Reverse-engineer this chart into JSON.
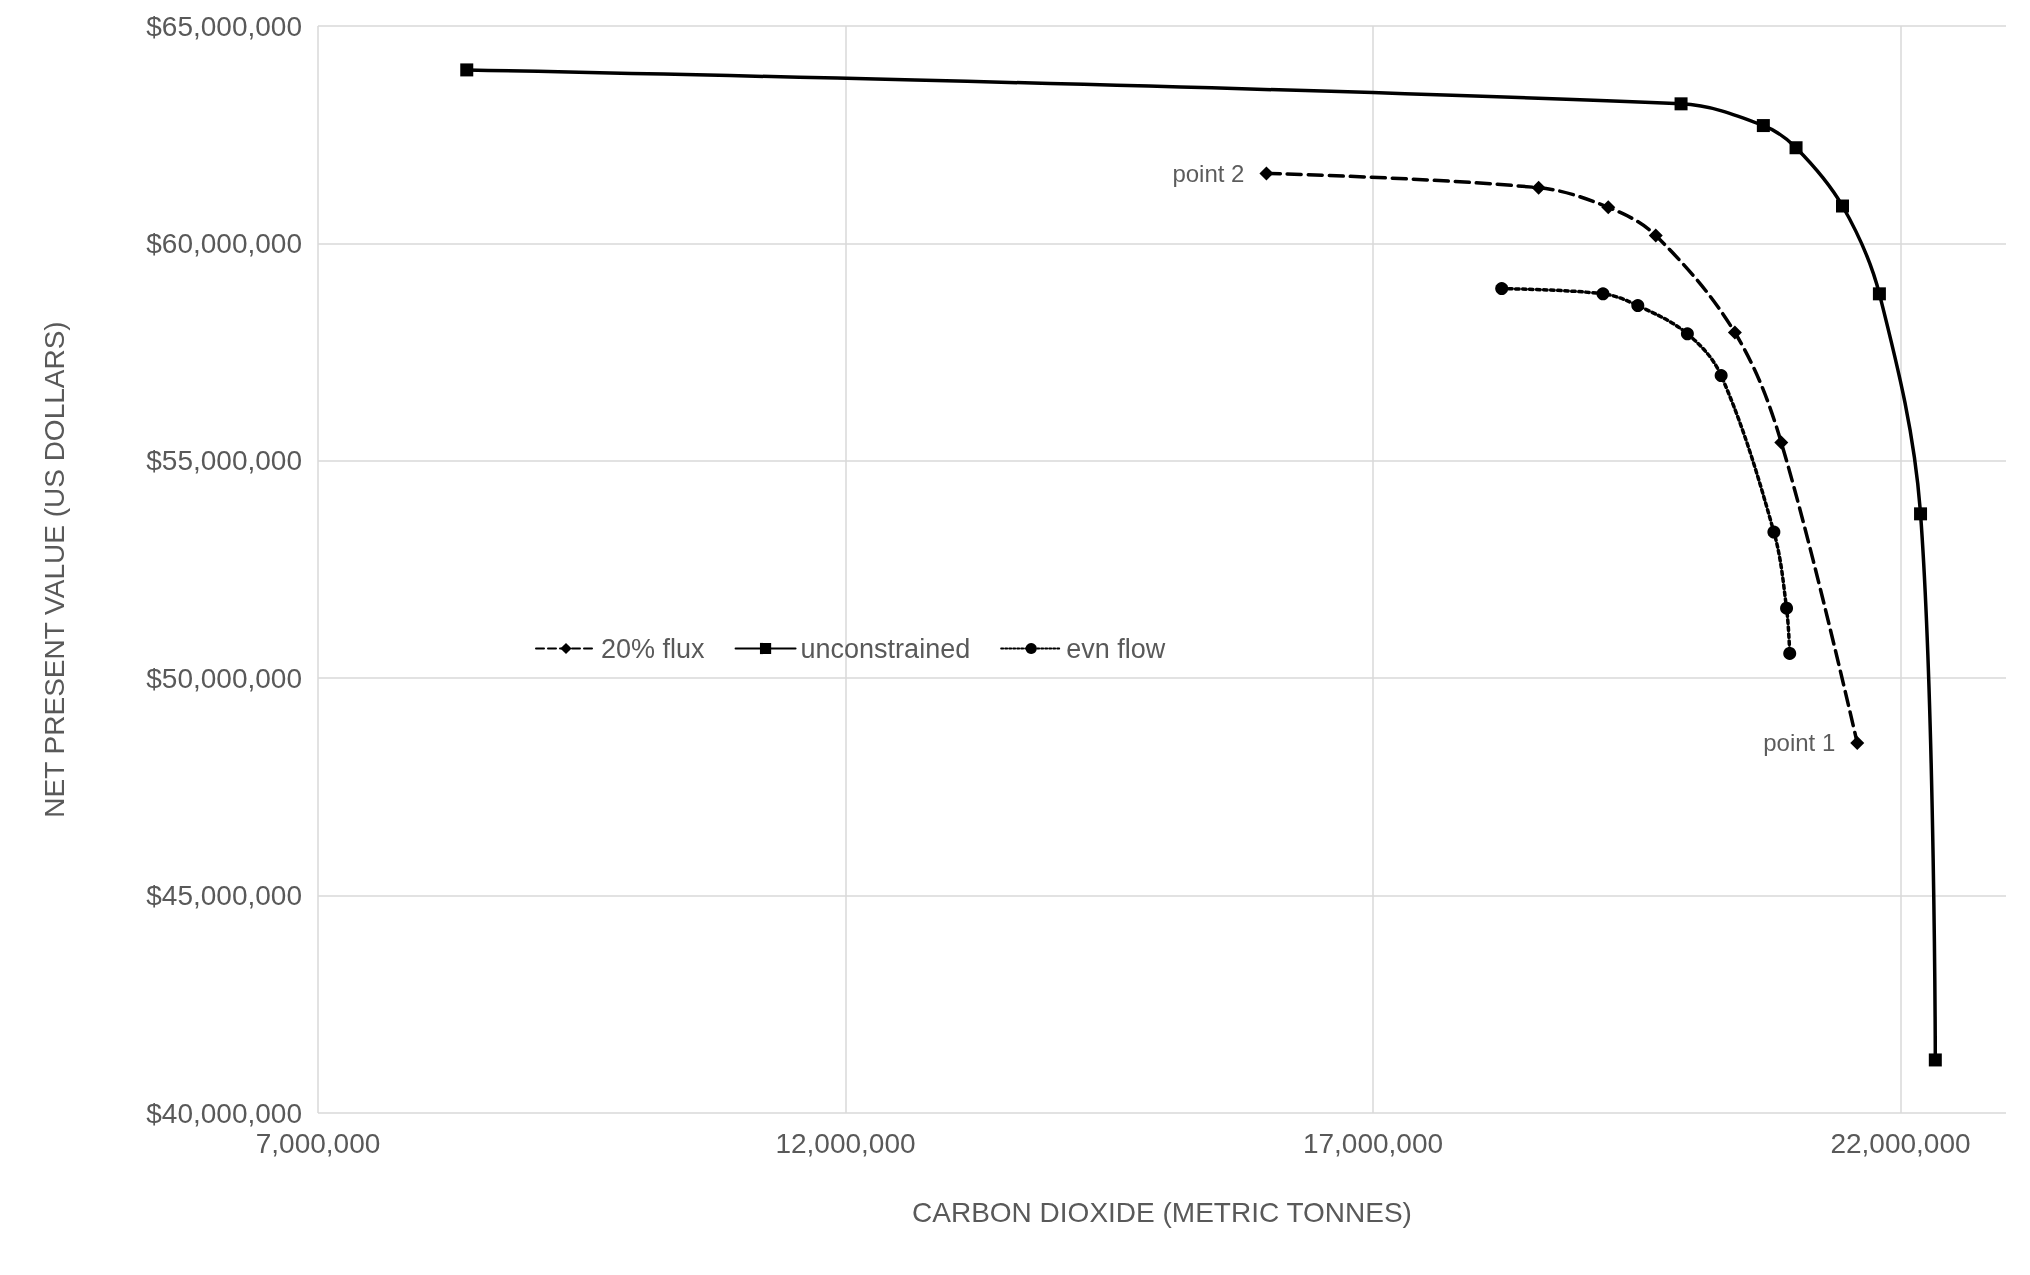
{
  "chart_data": {
    "type": "line",
    "xlabel": "CARBON DIOXIDE (METRIC TONNES)",
    "ylabel": "NET PRESENT VALUE (US DOLLARS)",
    "series": [
      {
        "name": "20% flux",
        "color": "#000000",
        "marker": "diamond",
        "line_style": "dashed",
        "x": [
          15990000,
          18570000,
          19230000,
          19680000,
          20430000,
          20870000,
          21590000
        ],
        "values": [
          61610000,
          61280000,
          60830000,
          60180000,
          57950000,
          55420000,
          48510000
        ]
      },
      {
        "name": "unconstrained",
        "color": "#000000",
        "marker": "square",
        "line_style": "solid",
        "x": [
          8410000,
          19920000,
          20700000,
          21010000,
          21450000,
          21800000,
          22190000,
          22330000
        ],
        "values": [
          63990000,
          63210000,
          62710000,
          62200000,
          60860000,
          58840000,
          53780000,
          41220000
        ]
      },
      {
        "name": "evn flow",
        "color": "#000000",
        "marker": "circle",
        "line_style": "dotted",
        "x": [
          18220000,
          19180000,
          19510000,
          19980000,
          20300000,
          20800000,
          20920000,
          20950000
        ],
        "values": [
          58960000,
          58840000,
          58570000,
          57920000,
          56960000,
          53360000,
          51610000,
          50570000
        ]
      }
    ],
    "xlim": [
      7000000,
      23000000
    ],
    "xticks": [
      {
        "value": 7000000,
        "label": "7,000,000"
      },
      {
        "value": 12000000,
        "label": "12,000,000"
      },
      {
        "value": 17000000,
        "label": "17,000,000"
      },
      {
        "value": 22000000,
        "label": "22,000,000"
      }
    ],
    "ylim": [
      40000000,
      65000000
    ],
    "yticks": [
      {
        "value": 40000000,
        "label": "$40,000,000"
      },
      {
        "value": 45000000,
        "label": "$45,000,000"
      },
      {
        "value": 50000000,
        "label": "$50,000,000"
      },
      {
        "value": 55000000,
        "label": "$55,000,000"
      },
      {
        "value": 60000000,
        "label": "$60,000,000"
      },
      {
        "value": 65000000,
        "label": "$65,000,000"
      }
    ],
    "grid": true,
    "legend": "center",
    "annotations": [
      {
        "text": "point 2",
        "x": 15990000,
        "y": 61610000
      },
      {
        "text": "point 1",
        "x": 21590000,
        "y": 48510000
      }
    ]
  }
}
